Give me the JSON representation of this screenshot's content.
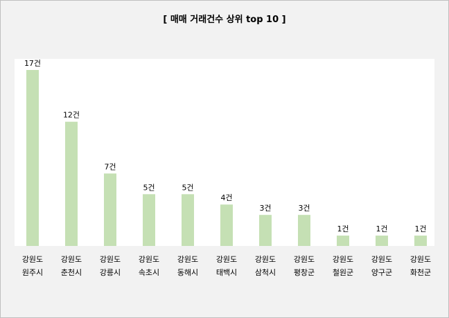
{
  "chart_data": {
    "type": "bar",
    "title": "[ 매매 거래건수 상위 top 10 ]",
    "categories": [
      [
        "강원도",
        "원주시"
      ],
      [
        "강원도",
        "춘천시"
      ],
      [
        "강원도",
        "강릉시"
      ],
      [
        "강원도",
        "속초시"
      ],
      [
        "강원도",
        "동해시"
      ],
      [
        "강원도",
        "태백시"
      ],
      [
        "강원도",
        "삼척시"
      ],
      [
        "강원도",
        "평창군"
      ],
      [
        "강원도",
        "철원군"
      ],
      [
        "강원도",
        "양구군"
      ],
      [
        "강원도",
        "화천군"
      ]
    ],
    "values": [
      17,
      12,
      7,
      5,
      5,
      4,
      3,
      3,
      1,
      1,
      1
    ],
    "data_labels": [
      "17건",
      "12건",
      "7건",
      "5건",
      "5건",
      "4건",
      "3건",
      "3건",
      "1건",
      "1건",
      "1건"
    ],
    "bar_color": "#c5e0b4",
    "ylim": [
      0,
      17
    ],
    "grid": false,
    "legend": "none",
    "xlabel": "",
    "ylabel": ""
  }
}
